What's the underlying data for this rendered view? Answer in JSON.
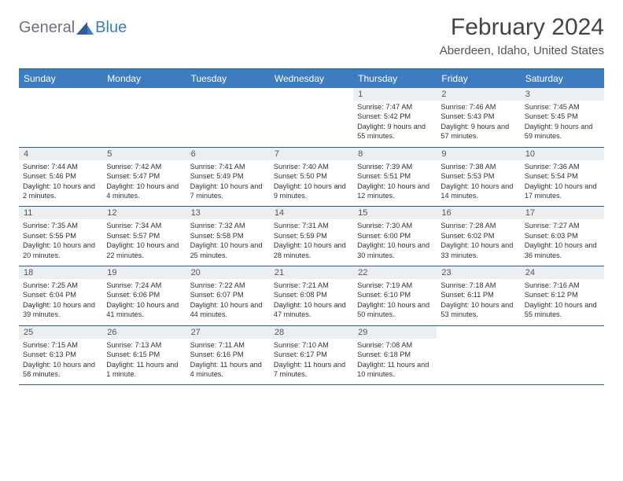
{
  "logo": {
    "general": "General",
    "blue": "Blue"
  },
  "title": "February 2024",
  "location": "Aberdeen, Idaho, United States",
  "colors": {
    "header_bg": "#3d7cc0",
    "header_text": "#ffffff",
    "daynum_bg": "#eceff1",
    "rule": "#2f5e93",
    "body_text": "#333333"
  },
  "day_headers": [
    "Sunday",
    "Monday",
    "Tuesday",
    "Wednesday",
    "Thursday",
    "Friday",
    "Saturday"
  ],
  "weeks": [
    {
      "nums": [
        "",
        "",
        "",
        "",
        "1",
        "2",
        "3"
      ],
      "cells": [
        null,
        null,
        null,
        null,
        {
          "sunrise": "7:47 AM",
          "sunset": "5:42 PM",
          "daylight": "9 hours and 55 minutes."
        },
        {
          "sunrise": "7:46 AM",
          "sunset": "5:43 PM",
          "daylight": "9 hours and 57 minutes."
        },
        {
          "sunrise": "7:45 AM",
          "sunset": "5:45 PM",
          "daylight": "9 hours and 59 minutes."
        }
      ]
    },
    {
      "nums": [
        "4",
        "5",
        "6",
        "7",
        "8",
        "9",
        "10"
      ],
      "cells": [
        {
          "sunrise": "7:44 AM",
          "sunset": "5:46 PM",
          "daylight": "10 hours and 2 minutes."
        },
        {
          "sunrise": "7:42 AM",
          "sunset": "5:47 PM",
          "daylight": "10 hours and 4 minutes."
        },
        {
          "sunrise": "7:41 AM",
          "sunset": "5:49 PM",
          "daylight": "10 hours and 7 minutes."
        },
        {
          "sunrise": "7:40 AM",
          "sunset": "5:50 PM",
          "daylight": "10 hours and 9 minutes."
        },
        {
          "sunrise": "7:39 AM",
          "sunset": "5:51 PM",
          "daylight": "10 hours and 12 minutes."
        },
        {
          "sunrise": "7:38 AM",
          "sunset": "5:53 PM",
          "daylight": "10 hours and 14 minutes."
        },
        {
          "sunrise": "7:36 AM",
          "sunset": "5:54 PM",
          "daylight": "10 hours and 17 minutes."
        }
      ]
    },
    {
      "nums": [
        "11",
        "12",
        "13",
        "14",
        "15",
        "16",
        "17"
      ],
      "cells": [
        {
          "sunrise": "7:35 AM",
          "sunset": "5:55 PM",
          "daylight": "10 hours and 20 minutes."
        },
        {
          "sunrise": "7:34 AM",
          "sunset": "5:57 PM",
          "daylight": "10 hours and 22 minutes."
        },
        {
          "sunrise": "7:32 AM",
          "sunset": "5:58 PM",
          "daylight": "10 hours and 25 minutes."
        },
        {
          "sunrise": "7:31 AM",
          "sunset": "5:59 PM",
          "daylight": "10 hours and 28 minutes."
        },
        {
          "sunrise": "7:30 AM",
          "sunset": "6:00 PM",
          "daylight": "10 hours and 30 minutes."
        },
        {
          "sunrise": "7:28 AM",
          "sunset": "6:02 PM",
          "daylight": "10 hours and 33 minutes."
        },
        {
          "sunrise": "7:27 AM",
          "sunset": "6:03 PM",
          "daylight": "10 hours and 36 minutes."
        }
      ]
    },
    {
      "nums": [
        "18",
        "19",
        "20",
        "21",
        "22",
        "23",
        "24"
      ],
      "cells": [
        {
          "sunrise": "7:25 AM",
          "sunset": "6:04 PM",
          "daylight": "10 hours and 39 minutes."
        },
        {
          "sunrise": "7:24 AM",
          "sunset": "6:06 PM",
          "daylight": "10 hours and 41 minutes."
        },
        {
          "sunrise": "7:22 AM",
          "sunset": "6:07 PM",
          "daylight": "10 hours and 44 minutes."
        },
        {
          "sunrise": "7:21 AM",
          "sunset": "6:08 PM",
          "daylight": "10 hours and 47 minutes."
        },
        {
          "sunrise": "7:19 AM",
          "sunset": "6:10 PM",
          "daylight": "10 hours and 50 minutes."
        },
        {
          "sunrise": "7:18 AM",
          "sunset": "6:11 PM",
          "daylight": "10 hours and 53 minutes."
        },
        {
          "sunrise": "7:16 AM",
          "sunset": "6:12 PM",
          "daylight": "10 hours and 55 minutes."
        }
      ]
    },
    {
      "nums": [
        "25",
        "26",
        "27",
        "28",
        "29",
        "",
        ""
      ],
      "cells": [
        {
          "sunrise": "7:15 AM",
          "sunset": "6:13 PM",
          "daylight": "10 hours and 58 minutes."
        },
        {
          "sunrise": "7:13 AM",
          "sunset": "6:15 PM",
          "daylight": "11 hours and 1 minute."
        },
        {
          "sunrise": "7:11 AM",
          "sunset": "6:16 PM",
          "daylight": "11 hours and 4 minutes."
        },
        {
          "sunrise": "7:10 AM",
          "sunset": "6:17 PM",
          "daylight": "11 hours and 7 minutes."
        },
        {
          "sunrise": "7:08 AM",
          "sunset": "6:18 PM",
          "daylight": "11 hours and 10 minutes."
        },
        null,
        null
      ]
    }
  ],
  "labels": {
    "sunrise": "Sunrise:",
    "sunset": "Sunset:",
    "daylight": "Daylight:"
  }
}
